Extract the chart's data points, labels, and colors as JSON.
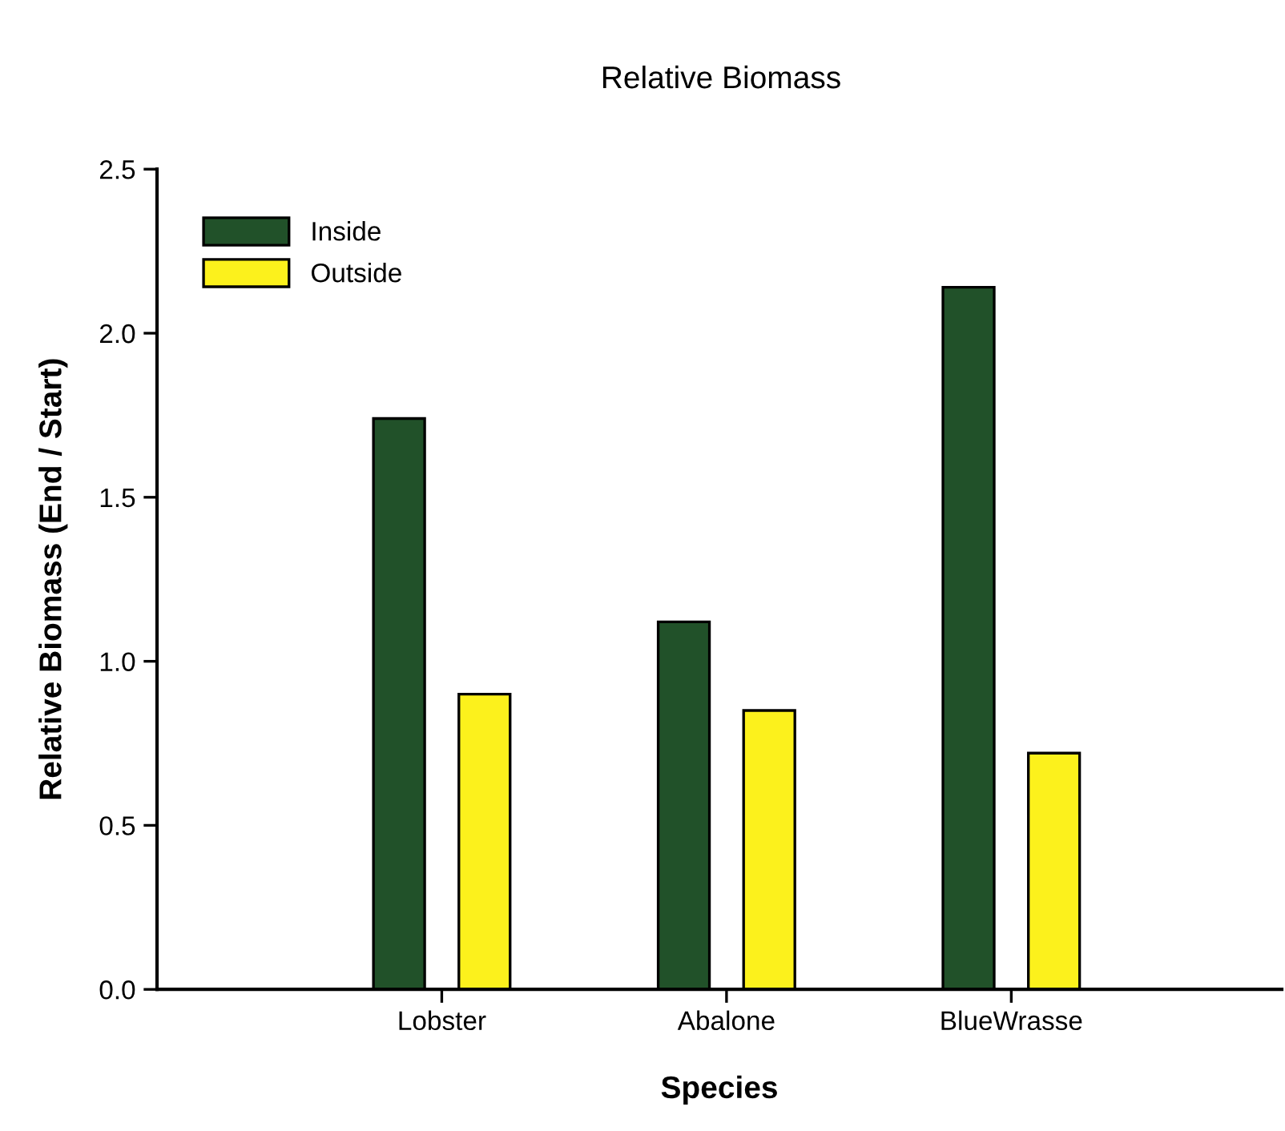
{
  "chart_data": {
    "type": "bar",
    "title": "Relative Biomass",
    "xlabel": "Species",
    "ylabel": "Relative Biomass (End / Start)",
    "categories": [
      "Lobster",
      "Abalone",
      "BlueWrasse"
    ],
    "series": [
      {
        "name": "Inside",
        "color": "#215129",
        "values": [
          1.74,
          1.12,
          2.14
        ]
      },
      {
        "name": "Outside",
        "color": "#fcf11c",
        "values": [
          0.9,
          0.85,
          0.72
        ]
      }
    ],
    "ylim": [
      0,
      2.5
    ],
    "yticks": [
      {
        "value": 0,
        "label": "0.0"
      },
      0.5,
      {
        "value": 1,
        "label": "1.0"
      },
      1.5,
      {
        "value": 2,
        "label": "2.0"
      },
      2.5
    ],
    "grid": false,
    "legend": "top left"
  }
}
